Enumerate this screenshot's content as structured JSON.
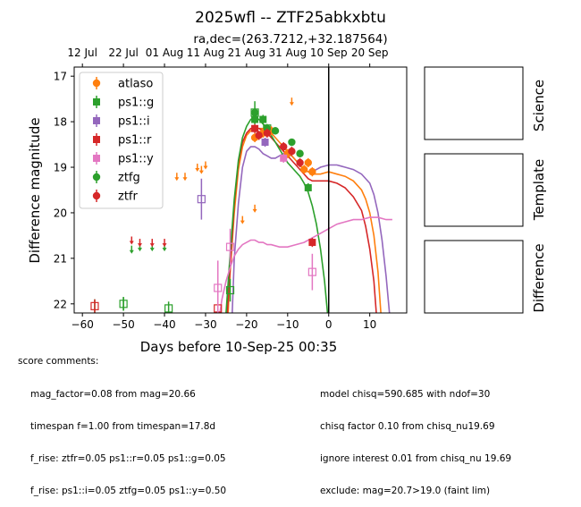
{
  "chart_data": {
    "type": "scatter",
    "title": "2025wfl -- ZTF25abkxbtu",
    "subtitle": "ra,dec=(263.7212,+32.187564)",
    "xlabel": "Days before 10-Sep-25 00:35",
    "ylabel": "Difference magnitude",
    "xlim": [
      -62,
      19
    ],
    "ylim": [
      22.2,
      16.8
    ],
    "xticks": [
      -60,
      -50,
      -40,
      -30,
      -20,
      -10,
      0,
      10
    ],
    "yticks": [
      17,
      18,
      19,
      20,
      21,
      22
    ],
    "top_axis_ticks": [
      {
        "label": "12 Jul",
        "x": -60
      },
      {
        "label": "22 Jul",
        "x": -50
      },
      {
        "label": "01 Aug",
        "x": -40
      },
      {
        "label": "11 Aug",
        "x": -30
      },
      {
        "label": "21 Aug",
        "x": -20
      },
      {
        "label": "31 Aug",
        "x": -10
      },
      {
        "label": "10 Sep",
        "x": 0
      },
      {
        "label": "20 Sep",
        "x": 10
      }
    ],
    "vline_x": 0,
    "legend": {
      "placement": "upper-left",
      "entries": [
        {
          "name": "atlaso",
          "color": "#ff7f0e",
          "marker": "circle"
        },
        {
          "name": "ps1::g",
          "color": "#2ca02c",
          "marker": "square"
        },
        {
          "name": "ps1::i",
          "color": "#9467bd",
          "marker": "square"
        },
        {
          "name": "ps1::r",
          "color": "#d62728",
          "marker": "square"
        },
        {
          "name": "ps1::y",
          "color": "#e377c2",
          "marker": "square"
        },
        {
          "name": "ztfg",
          "color": "#2ca02c",
          "marker": "circle"
        },
        {
          "name": "ztfr",
          "color": "#d62728",
          "marker": "circle"
        }
      ]
    },
    "points": [
      {
        "s": "atlaso",
        "x": -18,
        "y": 18.35,
        "e": 0.1
      },
      {
        "s": "atlaso",
        "x": -16,
        "y": 18.25,
        "e": 0.1
      },
      {
        "s": "atlaso",
        "x": -14,
        "y": 18.2,
        "e": 0.1
      },
      {
        "s": "atlaso",
        "x": -10,
        "y": 18.7,
        "e": 0.1
      },
      {
        "s": "atlaso",
        "x": -6,
        "y": 19.05,
        "e": 0.1
      },
      {
        "s": "atlaso",
        "x": -5,
        "y": 18.9,
        "e": 0.1
      },
      {
        "s": "atlaso",
        "x": -4,
        "y": 19.1,
        "e": 0.1
      },
      {
        "s": "ps1::g",
        "x": -18,
        "y": 17.95,
        "e": 0.1
      },
      {
        "s": "ps1::g",
        "x": -16,
        "y": 17.95,
        "e": 0.1
      },
      {
        "s": "ps1::g",
        "x": -5,
        "y": 19.45,
        "e": 0.1
      },
      {
        "s": "ps1::i",
        "x": -15.5,
        "y": 18.45,
        "e": 0.1
      },
      {
        "s": "ps1::r",
        "x": -18,
        "y": 18.15,
        "e": 0.1
      },
      {
        "s": "ps1::r",
        "x": -4,
        "y": 20.65,
        "e": 0.1
      },
      {
        "s": "ps1::y",
        "x": -11,
        "y": 18.8,
        "e": 0.1
      },
      {
        "s": "ztfg",
        "x": -18,
        "y": 17.8,
        "e": 0.25
      },
      {
        "s": "ztfg",
        "x": -15,
        "y": 18.15,
        "e": 0.08
      },
      {
        "s": "ztfg",
        "x": -13,
        "y": 18.2,
        "e": 0.08
      },
      {
        "s": "ztfg",
        "x": -9,
        "y": 18.45,
        "e": 0.08
      },
      {
        "s": "ztfg",
        "x": -7,
        "y": 18.7,
        "e": 0.08
      },
      {
        "s": "ztfr",
        "x": -17,
        "y": 18.3,
        "e": 0.1
      },
      {
        "s": "ztfr",
        "x": -15,
        "y": 18.25,
        "e": 0.1
      },
      {
        "s": "ztfr",
        "x": -11,
        "y": 18.55,
        "e": 0.1
      },
      {
        "s": "ztfr",
        "x": -9,
        "y": 18.65,
        "e": 0.1
      },
      {
        "s": "ztfr",
        "x": -7,
        "y": 18.9,
        "e": 0.1
      }
    ],
    "nondetections": [
      {
        "s": "ztfg",
        "x": -57,
        "y": 22.05,
        "e": 0.15
      },
      {
        "s": "ps1::r",
        "x": -57,
        "y": 22.05,
        "e": 0.15
      },
      {
        "s": "ztfg",
        "x": -50,
        "y": 22,
        "e": 0.15
      },
      {
        "s": "ps1::g",
        "x": -50,
        "y": 22,
        "e": 0.15
      },
      {
        "s": "ps1::g",
        "x": -39,
        "y": 22.1,
        "e": 0.15
      },
      {
        "s": "ps1::i",
        "x": -31,
        "y": 19.7,
        "e": 0.45
      },
      {
        "s": "ps1::r",
        "x": -27,
        "y": 22.1,
        "e": 0.15
      },
      {
        "s": "ps1::y",
        "x": -27,
        "y": 21.65,
        "e": 0.6
      },
      {
        "s": "ps1::g",
        "x": -24,
        "y": 21.7,
        "e": 0.25
      },
      {
        "s": "ps1::y",
        "x": -24,
        "y": 20.75,
        "e": 0.4
      },
      {
        "s": "ps1::g",
        "x": -18,
        "y": 17.8,
        "e": 0.1
      },
      {
        "s": "ps1::g",
        "x": -15,
        "y": 18.15,
        "e": 0.1
      },
      {
        "s": "ps1::y",
        "x": -4,
        "y": 21.3,
        "e": 0.4
      }
    ],
    "upper_limits": [
      {
        "s": "ztfg",
        "x": -48,
        "y": 20.8
      },
      {
        "s": "ztfr",
        "x": -48,
        "y": 20.6
      },
      {
        "s": "ztfg",
        "x": -46,
        "y": 20.75
      },
      {
        "s": "ztfr",
        "x": -46,
        "y": 20.65
      },
      {
        "s": "ztfg",
        "x": -43,
        "y": 20.75
      },
      {
        "s": "ztfr",
        "x": -43,
        "y": 20.65
      },
      {
        "s": "ztfg",
        "x": -40,
        "y": 20.75
      },
      {
        "s": "ztfr",
        "x": -40,
        "y": 20.65
      },
      {
        "s": "atlaso",
        "x": -37,
        "y": 19.2
      },
      {
        "s": "atlaso",
        "x": -35,
        "y": 19.2
      },
      {
        "s": "atlaso",
        "x": -32,
        "y": 19.0
      },
      {
        "s": "atlaso",
        "x": -31,
        "y": 19.05
      },
      {
        "s": "atlaso",
        "x": -30,
        "y": 18.95
      },
      {
        "s": "atlaso",
        "x": -21,
        "y": 20.15
      },
      {
        "s": "atlaso",
        "x": -18,
        "y": 19.9
      },
      {
        "s": "atlaso",
        "x": -9,
        "y": 17.55
      }
    ],
    "fit_curves": [
      {
        "s": "ps1::i",
        "pts": [
          [
            -23.5,
            22.2
          ],
          [
            -23,
            21.0
          ],
          [
            -22,
            19.8
          ],
          [
            -21,
            19.0
          ],
          [
            -20,
            18.65
          ],
          [
            -19,
            18.55
          ],
          [
            -18,
            18.55
          ],
          [
            -17,
            18.6
          ],
          [
            -16,
            18.7
          ],
          [
            -15,
            18.75
          ],
          [
            -14,
            18.8
          ],
          [
            -13,
            18.8
          ],
          [
            -12,
            18.75
          ],
          [
            -11,
            18.7
          ],
          [
            -10,
            18.7
          ],
          [
            -9,
            18.75
          ],
          [
            -8,
            18.85
          ],
          [
            -7,
            18.95
          ],
          [
            -6,
            19.05
          ],
          [
            -5,
            19.1
          ],
          [
            -4,
            19.1
          ],
          [
            -3,
            19.05
          ],
          [
            -2,
            19.0
          ],
          [
            0,
            18.95
          ],
          [
            2,
            18.95
          ],
          [
            4,
            19.0
          ],
          [
            6,
            19.05
          ],
          [
            8,
            19.15
          ],
          [
            10,
            19.35
          ],
          [
            11,
            19.6
          ],
          [
            12,
            20.0
          ],
          [
            13,
            20.6
          ],
          [
            14,
            21.4
          ],
          [
            14.8,
            22.2
          ]
        ]
      },
      {
        "s": "atlaso",
        "pts": [
          [
            -24.5,
            22.2
          ],
          [
            -24,
            21.3
          ],
          [
            -23,
            20.0
          ],
          [
            -22,
            19.05
          ],
          [
            -21,
            18.55
          ],
          [
            -20,
            18.3
          ],
          [
            -19,
            18.2
          ],
          [
            -18,
            18.15
          ],
          [
            -17,
            18.15
          ],
          [
            -16,
            18.15
          ],
          [
            -15,
            18.2
          ],
          [
            -14,
            18.25
          ],
          [
            -13,
            18.35
          ],
          [
            -12,
            18.45
          ],
          [
            -11,
            18.55
          ],
          [
            -10,
            18.65
          ],
          [
            -9,
            18.75
          ],
          [
            -8,
            18.85
          ],
          [
            -7,
            18.95
          ],
          [
            -6,
            19.05
          ],
          [
            -5,
            19.1
          ],
          [
            -4,
            19.15
          ],
          [
            -3,
            19.15
          ],
          [
            -2,
            19.15
          ],
          [
            0,
            19.1
          ],
          [
            2,
            19.15
          ],
          [
            4,
            19.2
          ],
          [
            6,
            19.3
          ],
          [
            8,
            19.5
          ],
          [
            9,
            19.7
          ],
          [
            10,
            20.0
          ],
          [
            11,
            20.5
          ],
          [
            12,
            21.3
          ],
          [
            12.7,
            22.2
          ]
        ]
      },
      {
        "s": "ps1::r",
        "pts": [
          [
            -24.7,
            22.2
          ],
          [
            -24,
            21.2
          ],
          [
            -23,
            19.8
          ],
          [
            -22,
            18.9
          ],
          [
            -21,
            18.45
          ],
          [
            -20,
            18.25
          ],
          [
            -19,
            18.15
          ],
          [
            -18,
            18.15
          ],
          [
            -17,
            18.15
          ],
          [
            -16,
            18.2
          ],
          [
            -15,
            18.25
          ],
          [
            -14,
            18.35
          ],
          [
            -13,
            18.45
          ],
          [
            -12,
            18.55
          ],
          [
            -11,
            18.65
          ],
          [
            -10,
            18.75
          ],
          [
            -9,
            18.85
          ],
          [
            -8,
            18.95
          ],
          [
            -7,
            19.05
          ],
          [
            -6,
            19.15
          ],
          [
            -5,
            19.25
          ],
          [
            -4,
            19.3
          ],
          [
            -3,
            19.3
          ],
          [
            -2,
            19.3
          ],
          [
            0,
            19.3
          ],
          [
            2,
            19.35
          ],
          [
            4,
            19.45
          ],
          [
            6,
            19.65
          ],
          [
            8,
            19.95
          ],
          [
            9,
            20.3
          ],
          [
            10,
            20.8
          ],
          [
            11,
            21.5
          ],
          [
            11.6,
            22.2
          ]
        ]
      },
      {
        "s": "ps1::g",
        "pts": [
          [
            -25,
            22.2
          ],
          [
            -24,
            20.9
          ],
          [
            -23,
            19.7
          ],
          [
            -22,
            18.85
          ],
          [
            -21,
            18.35
          ],
          [
            -20,
            18.1
          ],
          [
            -19,
            17.95
          ],
          [
            -18,
            17.9
          ],
          [
            -17,
            17.95
          ],
          [
            -16,
            18.05
          ],
          [
            -15,
            18.15
          ],
          [
            -14,
            18.3
          ],
          [
            -13,
            18.45
          ],
          [
            -12,
            18.6
          ],
          [
            -11,
            18.75
          ],
          [
            -10,
            18.9
          ],
          [
            -9,
            19.0
          ],
          [
            -8,
            19.1
          ],
          [
            -7,
            19.2
          ],
          [
            -6,
            19.35
          ],
          [
            -5,
            19.55
          ],
          [
            -4,
            19.85
          ],
          [
            -3,
            20.25
          ],
          [
            -2,
            20.8
          ],
          [
            -1,
            21.5
          ],
          [
            -0.3,
            22.2
          ]
        ]
      },
      {
        "s": "ps1::y",
        "pts": [
          [
            -26.5,
            22.2
          ],
          [
            -26,
            21.9
          ],
          [
            -25,
            21.5
          ],
          [
            -24,
            21.2
          ],
          [
            -23,
            20.95
          ],
          [
            -22,
            20.8
          ],
          [
            -21,
            20.7
          ],
          [
            -20,
            20.65
          ],
          [
            -19,
            20.6
          ],
          [
            -18,
            20.6
          ],
          [
            -17,
            20.65
          ],
          [
            -16,
            20.65
          ],
          [
            -15,
            20.7
          ],
          [
            -14,
            20.7
          ],
          [
            -12,
            20.75
          ],
          [
            -10,
            20.75
          ],
          [
            -8,
            20.7
          ],
          [
            -6,
            20.65
          ],
          [
            -4,
            20.55
          ],
          [
            -2,
            20.45
          ],
          [
            0,
            20.35
          ],
          [
            2,
            20.25
          ],
          [
            4,
            20.2
          ],
          [
            6,
            20.15
          ],
          [
            8,
            20.15
          ],
          [
            10,
            20.1
          ],
          [
            12,
            20.1
          ],
          [
            14,
            20.15
          ],
          [
            15.5,
            20.15
          ]
        ]
      }
    ]
  },
  "panels": [
    {
      "label": "Science"
    },
    {
      "label": "Template"
    },
    {
      "label": "Difference"
    }
  ],
  "score_comments": {
    "header": "score comments:",
    "left": [
      "mag_factor=0.08 from mag=20.66",
      "timespan f=1.00 from timespan=17.8d",
      "f_rise: ztfr=0.05 ps1::r=0.05 ps1::g=0.05",
      "f_rise: ps1::i=0.05 ztfg=0.05 ps1::y=0.50"
    ],
    "right": [
      "model chisq=590.685 with ndof=30",
      "chisq factor 0.10 from chisq_nu19.69",
      "ignore interest 0.01 from chisq_nu 19.69",
      "exclude: mag=20.7>19.0 (faint lim)"
    ]
  },
  "colors": {
    "atlaso": "#ff7f0e",
    "ps1::g": "#2ca02c",
    "ps1::i": "#9467bd",
    "ps1::r": "#d62728",
    "ps1::y": "#e377c2",
    "ztfg": "#2ca02c",
    "ztfr": "#d62728"
  }
}
